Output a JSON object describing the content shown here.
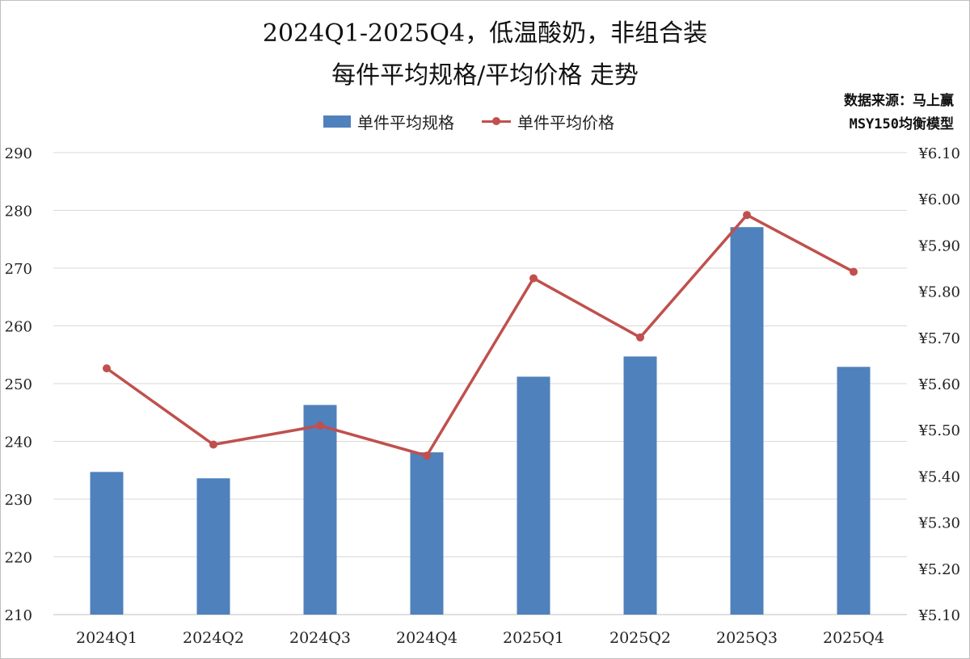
{
  "title_line1": "2024Q1-2025Q4，低温酸奶，非组合装",
  "title_line2": "每件平均规格/平均价格 走势",
  "source_line1": "数据来源：马上赢",
  "source_line2": "MSY150均衡模型",
  "colors": {
    "bar": "#4f81bd",
    "line": "#c0504d",
    "grid": "#d9d9d9",
    "axis": "#bfbfbf"
  },
  "chart_data": {
    "type": "bar+line",
    "categories": [
      "2024Q1",
      "2024Q2",
      "2024Q3",
      "2024Q4",
      "2025Q1",
      "2025Q2",
      "2025Q3",
      "2025Q4"
    ],
    "series": [
      {
        "name": "单件平均规格",
        "type": "bar",
        "axis": "left",
        "values": [
          234.7,
          233.6,
          246.3,
          238.1,
          251.2,
          254.7,
          277.1,
          252.9
        ]
      },
      {
        "name": "单件平均价格",
        "type": "line",
        "axis": "right",
        "values": [
          5.633,
          5.468,
          5.509,
          5.444,
          5.828,
          5.7,
          5.965,
          5.842
        ]
      }
    ],
    "y_left": {
      "min": 210,
      "max": 290,
      "step": 10,
      "ticks": [
        "210",
        "220",
        "230",
        "240",
        "250",
        "260",
        "270",
        "280",
        "290"
      ]
    },
    "y_right": {
      "min": 5.1,
      "max": 6.1,
      "step": 0.1,
      "ticks": [
        "¥5.10",
        "¥5.20",
        "¥5.30",
        "¥5.40",
        "¥5.50",
        "¥5.60",
        "¥5.70",
        "¥5.80",
        "¥5.90",
        "¥6.00",
        "¥6.10"
      ]
    },
    "grid": true,
    "legend_position": "top"
  }
}
